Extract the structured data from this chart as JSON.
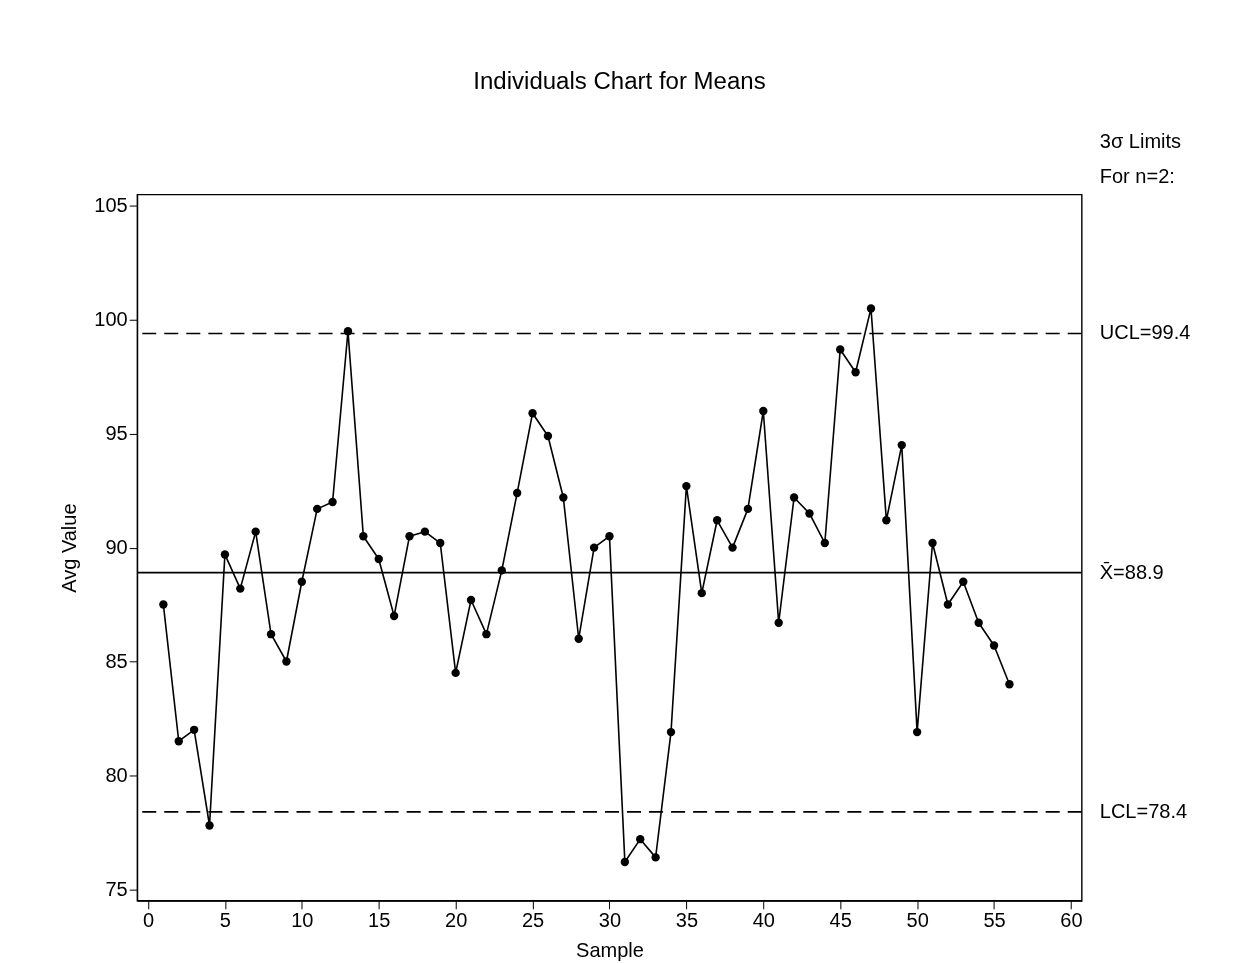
{
  "chart_data": {
    "type": "line",
    "title": "Individuals Chart for Means",
    "xlabel": "Sample",
    "ylabel": "Avg Value",
    "x": [
      1,
      2,
      3,
      4,
      5,
      6,
      7,
      8,
      9,
      10,
      11,
      12,
      13,
      14,
      15,
      16,
      17,
      18,
      19,
      20,
      21,
      22,
      23,
      24,
      25,
      26,
      27,
      28,
      29,
      30,
      31,
      32,
      33,
      34,
      35,
      36,
      37,
      38,
      39,
      40,
      41,
      42,
      43,
      44,
      45,
      46,
      47,
      48,
      49,
      50,
      51,
      52,
      53,
      54,
      55,
      56
    ],
    "series": [
      {
        "color": "#000000",
        "values": [
          87.5,
          81.5,
          82.0,
          77.8,
          89.7,
          88.2,
          90.7,
          86.2,
          85.0,
          88.5,
          91.7,
          92.0,
          99.5,
          90.5,
          89.5,
          87.0,
          90.5,
          90.7,
          90.2,
          84.5,
          87.7,
          86.2,
          89.0,
          92.4,
          95.9,
          94.9,
          92.2,
          86.0,
          90.0,
          90.5,
          76.2,
          77.2,
          76.4,
          81.9,
          92.7,
          88.0,
          91.2,
          90.0,
          91.7,
          96.0,
          86.7,
          92.2,
          91.5,
          90.2,
          98.7,
          97.7,
          100.5,
          91.2,
          94.5,
          81.9,
          90.2,
          87.5,
          88.5,
          86.7,
          85.7,
          84.0
        ]
      }
    ],
    "xlim": [
      -0.7,
      60.7
    ],
    "xticks": [
      0,
      5,
      10,
      15,
      20,
      25,
      30,
      35,
      40,
      45,
      50,
      55,
      60
    ],
    "ylim": [
      74.5,
      105.5
    ],
    "yticks": [
      75,
      80,
      85,
      90,
      95,
      100,
      105
    ],
    "marker": "circle",
    "line_style": "solid",
    "grid": false,
    "ref_lines": [
      {
        "axis": "y",
        "value": 99.4,
        "label": "UCL=99.4",
        "line_style": "dashed",
        "color": "#000000"
      },
      {
        "axis": "y",
        "value": 88.9,
        "label": "X̄=88.9",
        "line_style": "solid",
        "color": "#000000"
      },
      {
        "axis": "y",
        "value": 78.4,
        "label": "LCL=78.4",
        "line_style": "dashed",
        "color": "#000000"
      }
    ],
    "annotations": [
      "3σ  Limits",
      "For  n=2:"
    ]
  }
}
